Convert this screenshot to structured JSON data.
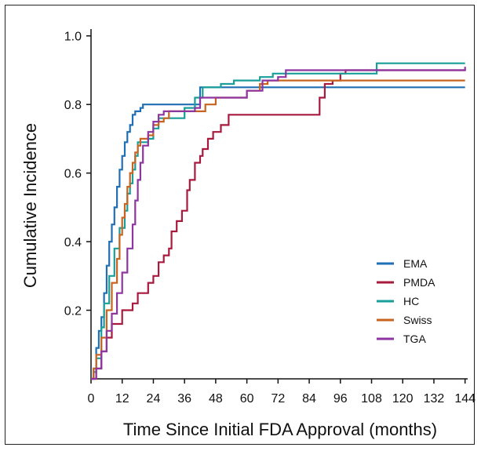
{
  "chart_data": {
    "type": "line",
    "xlabel": "Time Since Initial FDA Approval (months)",
    "ylabel": "Cumulative Incidence",
    "xlim": [
      0,
      145
    ],
    "ylim": [
      0,
      1.02
    ],
    "x_ticks": [
      0,
      12,
      24,
      36,
      48,
      60,
      72,
      84,
      96,
      108,
      120,
      132,
      144
    ],
    "y_ticks": [
      0.2,
      0.4,
      0.6,
      0.8,
      1.0
    ],
    "y_tick_labels": [
      "0.2",
      "0.4",
      "0.6",
      "0.8",
      "1.0"
    ],
    "grid": false,
    "legend_position": "right",
    "series": [
      {
        "name": "EMA",
        "color": "#1f6fb4",
        "points": [
          [
            0,
            0
          ],
          [
            1,
            0.03
          ],
          [
            2,
            0.09
          ],
          [
            3,
            0.14
          ],
          [
            4,
            0.18
          ],
          [
            5,
            0.25
          ],
          [
            6,
            0.33
          ],
          [
            7,
            0.4
          ],
          [
            8,
            0.45
          ],
          [
            9,
            0.5
          ],
          [
            10,
            0.56
          ],
          [
            11,
            0.61
          ],
          [
            12,
            0.65
          ],
          [
            13,
            0.69
          ],
          [
            14,
            0.72
          ],
          [
            15,
            0.74
          ],
          [
            16,
            0.77
          ],
          [
            17,
            0.78
          ],
          [
            19,
            0.79
          ],
          [
            20,
            0.8
          ],
          [
            38,
            0.8
          ],
          [
            42,
            0.85
          ],
          [
            144,
            0.85
          ]
        ]
      },
      {
        "name": "PMDA",
        "color": "#a8193e",
        "points": [
          [
            0,
            0
          ],
          [
            2,
            0.03
          ],
          [
            4,
            0.08
          ],
          [
            6,
            0.12
          ],
          [
            8,
            0.16
          ],
          [
            12,
            0.2
          ],
          [
            16,
            0.22
          ],
          [
            18,
            0.25
          ],
          [
            22,
            0.28
          ],
          [
            24,
            0.3
          ],
          [
            26,
            0.34
          ],
          [
            28,
            0.36
          ],
          [
            30,
            0.38
          ],
          [
            31,
            0.43
          ],
          [
            33,
            0.46
          ],
          [
            35,
            0.49
          ],
          [
            37,
            0.55
          ],
          [
            38,
            0.58
          ],
          [
            40,
            0.63
          ],
          [
            42,
            0.65
          ],
          [
            43,
            0.67
          ],
          [
            45,
            0.7
          ],
          [
            47,
            0.72
          ],
          [
            50,
            0.74
          ],
          [
            53,
            0.77
          ],
          [
            72,
            0.77
          ],
          [
            84,
            0.77
          ],
          [
            88,
            0.82
          ],
          [
            90,
            0.86
          ],
          [
            93,
            0.87
          ],
          [
            96,
            0.89
          ],
          [
            98,
            0.9
          ],
          [
            144,
            0.9
          ]
        ]
      },
      {
        "name": "HC",
        "color": "#1a9e9a",
        "points": [
          [
            0,
            0
          ],
          [
            1,
            0.02
          ],
          [
            2,
            0.06
          ],
          [
            4,
            0.15
          ],
          [
            5,
            0.22
          ],
          [
            7,
            0.3
          ],
          [
            9,
            0.38
          ],
          [
            11,
            0.44
          ],
          [
            13,
            0.49
          ],
          [
            14,
            0.54
          ],
          [
            15,
            0.57
          ],
          [
            16,
            0.61
          ],
          [
            17,
            0.65
          ],
          [
            18,
            0.69
          ],
          [
            22,
            0.7
          ],
          [
            24,
            0.73
          ],
          [
            26,
            0.76
          ],
          [
            36,
            0.79
          ],
          [
            40,
            0.82
          ],
          [
            43,
            0.85
          ],
          [
            50,
            0.86
          ],
          [
            55,
            0.87
          ],
          [
            65,
            0.88
          ],
          [
            70,
            0.89
          ],
          [
            108,
            0.89
          ],
          [
            110,
            0.92
          ],
          [
            144,
            0.92
          ]
        ]
      },
      {
        "name": "Swiss",
        "color": "#c8641f",
        "points": [
          [
            0,
            0
          ],
          [
            1,
            0.03
          ],
          [
            2,
            0.07
          ],
          [
            4,
            0.12
          ],
          [
            6,
            0.2
          ],
          [
            8,
            0.28
          ],
          [
            10,
            0.35
          ],
          [
            11,
            0.42
          ],
          [
            12,
            0.47
          ],
          [
            13,
            0.51
          ],
          [
            14,
            0.56
          ],
          [
            15,
            0.6
          ],
          [
            16,
            0.63
          ],
          [
            17,
            0.66
          ],
          [
            18,
            0.68
          ],
          [
            19,
            0.7
          ],
          [
            22,
            0.71
          ],
          [
            24,
            0.74
          ],
          [
            26,
            0.75
          ],
          [
            28,
            0.76
          ],
          [
            30,
            0.78
          ],
          [
            40,
            0.78
          ],
          [
            44,
            0.8
          ],
          [
            48,
            0.82
          ],
          [
            55,
            0.82
          ],
          [
            60,
            0.84
          ],
          [
            65,
            0.86
          ],
          [
            68,
            0.87
          ],
          [
            144,
            0.87
          ]
        ]
      },
      {
        "name": "TGA",
        "color": "#8e35a0",
        "points": [
          [
            0,
            0
          ],
          [
            2,
            0.03
          ],
          [
            4,
            0.08
          ],
          [
            6,
            0.14
          ],
          [
            8,
            0.19
          ],
          [
            10,
            0.25
          ],
          [
            12,
            0.31
          ],
          [
            14,
            0.38
          ],
          [
            16,
            0.45
          ],
          [
            17,
            0.52
          ],
          [
            18,
            0.58
          ],
          [
            19,
            0.63
          ],
          [
            20,
            0.68
          ],
          [
            22,
            0.72
          ],
          [
            24,
            0.75
          ],
          [
            26,
            0.77
          ],
          [
            28,
            0.78
          ],
          [
            40,
            0.79
          ],
          [
            42,
            0.82
          ],
          [
            50,
            0.82
          ],
          [
            60,
            0.84
          ],
          [
            66,
            0.87
          ],
          [
            72,
            0.88
          ],
          [
            75,
            0.9
          ],
          [
            144,
            0.91
          ]
        ]
      }
    ]
  }
}
